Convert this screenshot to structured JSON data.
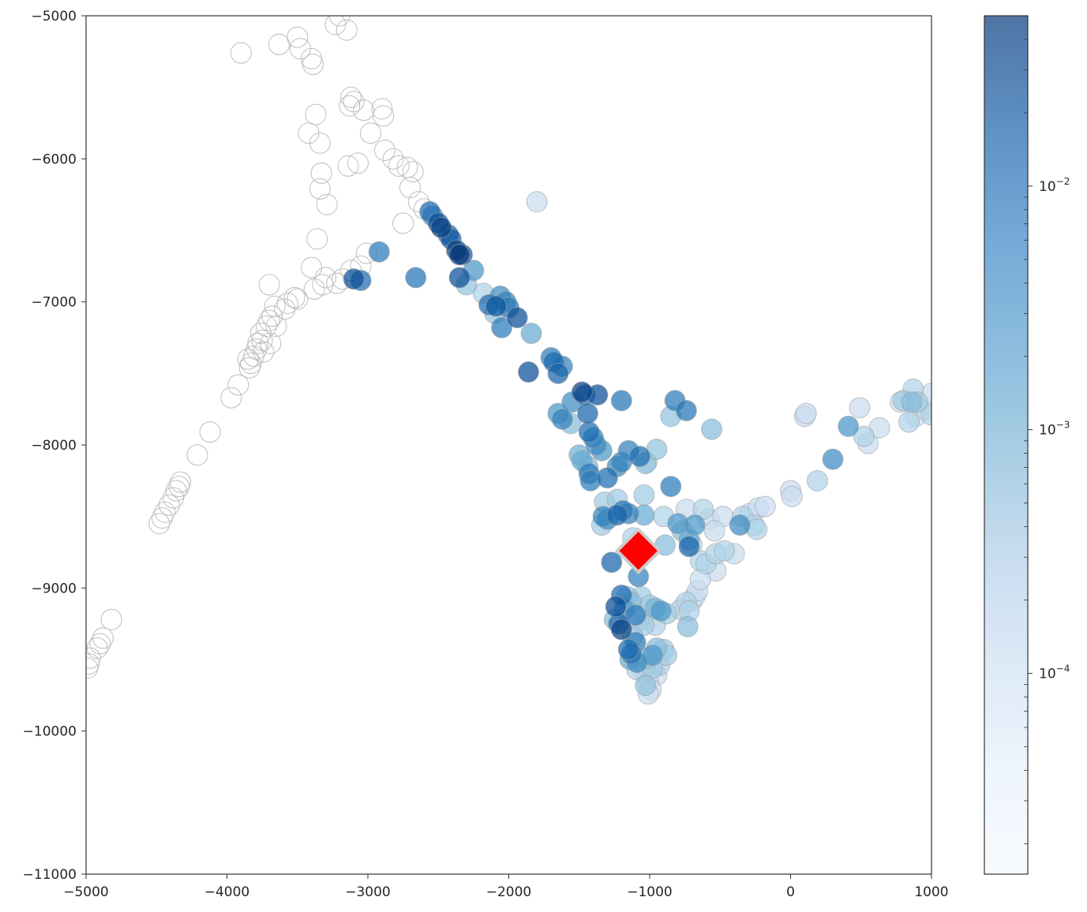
{
  "chart_data": {
    "type": "scatter",
    "title": "",
    "xlabel": "",
    "ylabel": "",
    "xlim": [
      -5000,
      1000
    ],
    "ylim": [
      -11000,
      -5000
    ],
    "xticks": [
      -5000,
      -4000,
      -3000,
      -2000,
      -1000,
      0,
      1000
    ],
    "xtick_labels": [
      "−5000",
      "−4000",
      "−3000",
      "−2000",
      "−1000",
      "0",
      "1000"
    ],
    "yticks": [
      -5000,
      -6000,
      -7000,
      -8000,
      -9000,
      -10000,
      -11000
    ],
    "ytick_labels": [
      "−5000",
      "−6000",
      "−7000",
      "−8000",
      "−9000",
      "−10000",
      "−11000"
    ],
    "grid": false,
    "colormap": "Blues",
    "colorbar": {
      "scale": "log",
      "range": [
        1.5e-05,
        0.05
      ],
      "ticks": [
        0.0001,
        0.001,
        0.01
      ],
      "tick_labels": [
        {
          "base": "10",
          "exp": "−4"
        },
        {
          "base": "10",
          "exp": "−3"
        },
        {
          "base": "10",
          "exp": "−2"
        }
      ]
    },
    "unvalued_points": [
      [
        -3900,
        -5260
      ],
      [
        -3630,
        -5200
      ],
      [
        -3500,
        -5150
      ],
      [
        -3480,
        -5230
      ],
      [
        -3400,
        -5300
      ],
      [
        -3390,
        -5340
      ],
      [
        -3200,
        -5000
      ],
      [
        -3230,
        -5060
      ],
      [
        -3150,
        -5100
      ],
      [
        -3120,
        -5570
      ],
      [
        -3100,
        -5600
      ],
      [
        -3130,
        -5630
      ],
      [
        -3030,
        -5660
      ],
      [
        -2900,
        -5650
      ],
      [
        -2890,
        -5700
      ],
      [
        -2980,
        -5820
      ],
      [
        -3370,
        -5690
      ],
      [
        -3420,
        -5820
      ],
      [
        -3340,
        -5890
      ],
      [
        -2880,
        -5940
      ],
      [
        -2820,
        -6000
      ],
      [
        -2780,
        -6050
      ],
      [
        -2720,
        -6060
      ],
      [
        -2680,
        -6090
      ],
      [
        -2700,
        -6200
      ],
      [
        -2640,
        -6300
      ],
      [
        -2600,
        -6350
      ],
      [
        -2750,
        -6450
      ],
      [
        -3330,
        -6100
      ],
      [
        -3340,
        -6210
      ],
      [
        -3290,
        -6320
      ],
      [
        -3360,
        -6560
      ],
      [
        -3140,
        -6050
      ],
      [
        -3070,
        -6030
      ],
      [
        -3010,
        -6660
      ],
      [
        -3050,
        -6750
      ],
      [
        -3120,
        -6780
      ],
      [
        -3180,
        -6840
      ],
      [
        -3220,
        -6870
      ],
      [
        -3300,
        -6830
      ],
      [
        -3320,
        -6880
      ],
      [
        -3380,
        -6910
      ],
      [
        -3400,
        -6760
      ],
      [
        -3500,
        -6980
      ],
      [
        -3520,
        -6970
      ],
      [
        -3570,
        -7010
      ],
      [
        -3590,
        -7050
      ],
      [
        -3660,
        -7030
      ],
      [
        -3680,
        -7100
      ],
      [
        -3700,
        -6880
      ],
      [
        -3700,
        -7130
      ],
      [
        -3650,
        -7170
      ],
      [
        -3720,
        -7170
      ],
      [
        -3760,
        -7220
      ],
      [
        -3750,
        -7270
      ],
      [
        -3690,
        -7290
      ],
      [
        -3780,
        -7290
      ],
      [
        -3790,
        -7330
      ],
      [
        -3740,
        -7350
      ],
      [
        -3810,
        -7380
      ],
      [
        -3830,
        -7430
      ],
      [
        -3850,
        -7400
      ],
      [
        -3840,
        -7460
      ],
      [
        -3920,
        -7580
      ],
      [
        -3970,
        -7670
      ],
      [
        -4120,
        -7910
      ],
      [
        -4210,
        -8070
      ],
      [
        -4330,
        -8260
      ],
      [
        -4340,
        -8290
      ],
      [
        -4360,
        -8320
      ],
      [
        -4380,
        -8370
      ],
      [
        -4410,
        -8420
      ],
      [
        -4440,
        -8470
      ],
      [
        -4460,
        -8510
      ],
      [
        -4480,
        -8550
      ],
      [
        -4820,
        -9220
      ],
      [
        -4880,
        -9350
      ],
      [
        -4900,
        -9390
      ],
      [
        -4920,
        -9420
      ],
      [
        -4970,
        -9490
      ],
      [
        -4980,
        -9530
      ],
      [
        -4990,
        -9560
      ]
    ],
    "points": [
      {
        "x": -1800,
        "y": -6300,
        "v": 0.0001
      },
      {
        "x": -2560,
        "y": -6370,
        "v": 0.008
      },
      {
        "x": -2540,
        "y": -6400,
        "v": 0.003
      },
      {
        "x": -2500,
        "y": -6450,
        "v": 0.02
      },
      {
        "x": -2480,
        "y": -6480,
        "v": 0.03
      },
      {
        "x": -2430,
        "y": -6530,
        "v": 0.01
      },
      {
        "x": -2410,
        "y": -6560,
        "v": 0.015
      },
      {
        "x": -2370,
        "y": -6640,
        "v": 0.03
      },
      {
        "x": -2350,
        "y": -6670,
        "v": 0.04
      },
      {
        "x": -2330,
        "y": -6670,
        "v": 0.015
      },
      {
        "x": -2350,
        "y": -6830,
        "v": 0.02
      },
      {
        "x": -2250,
        "y": -6780,
        "v": 0.002
      },
      {
        "x": -2920,
        "y": -6650,
        "v": 0.005
      },
      {
        "x": -2660,
        "y": -6830,
        "v": 0.006
      },
      {
        "x": -3100,
        "y": -6840,
        "v": 0.02
      },
      {
        "x": -3050,
        "y": -6850,
        "v": 0.008
      },
      {
        "x": -2300,
        "y": -6880,
        "v": 0.0004
      },
      {
        "x": -2180,
        "y": -6940,
        "v": 0.0002
      },
      {
        "x": -2060,
        "y": -6960,
        "v": 0.003
      },
      {
        "x": -2020,
        "y": -7000,
        "v": 0.004
      },
      {
        "x": -2140,
        "y": -7020,
        "v": 0.008
      },
      {
        "x": -2090,
        "y": -7030,
        "v": 0.015
      },
      {
        "x": -2000,
        "y": -7040,
        "v": 0.005
      },
      {
        "x": -2100,
        "y": -7080,
        "v": 0.0004
      },
      {
        "x": -1940,
        "y": -7110,
        "v": 0.02
      },
      {
        "x": -2050,
        "y": -7180,
        "v": 0.005
      },
      {
        "x": -1840,
        "y": -7220,
        "v": 0.001
      },
      {
        "x": -1700,
        "y": -7390,
        "v": 0.005
      },
      {
        "x": -1680,
        "y": -7420,
        "v": 0.008
      },
      {
        "x": -1620,
        "y": -7450,
        "v": 0.004
      },
      {
        "x": -1650,
        "y": -7500,
        "v": 0.01
      },
      {
        "x": -1860,
        "y": -7490,
        "v": 0.02
      },
      {
        "x": -1480,
        "y": -7630,
        "v": 0.03
      },
      {
        "x": -1460,
        "y": -7650,
        "v": 0.008
      },
      {
        "x": -1370,
        "y": -7650,
        "v": 0.02
      },
      {
        "x": -1550,
        "y": -7700,
        "v": 0.003
      },
      {
        "x": -1200,
        "y": -7690,
        "v": 0.006
      },
      {
        "x": -1650,
        "y": -7780,
        "v": 0.002
      },
      {
        "x": -1620,
        "y": -7820,
        "v": 0.004
      },
      {
        "x": -1560,
        "y": -7850,
        "v": 0.0005
      },
      {
        "x": -1440,
        "y": -7780,
        "v": 0.01
      },
      {
        "x": -1430,
        "y": -7910,
        "v": 0.008
      },
      {
        "x": -1400,
        "y": -7950,
        "v": 0.004
      },
      {
        "x": -1380,
        "y": -8000,
        "v": 0.003
      },
      {
        "x": -1340,
        "y": -8040,
        "v": 0.002
      },
      {
        "x": -1500,
        "y": -8070,
        "v": 0.0008
      },
      {
        "x": -1480,
        "y": -8110,
        "v": 0.001
      },
      {
        "x": -1440,
        "y": -8150,
        "v": 0.0006
      },
      {
        "x": -1430,
        "y": -8200,
        "v": 0.005
      },
      {
        "x": -1420,
        "y": -8250,
        "v": 0.005
      },
      {
        "x": -1300,
        "y": -8230,
        "v": 0.008
      },
      {
        "x": -1230,
        "y": -8150,
        "v": 0.003
      },
      {
        "x": -1200,
        "y": -8120,
        "v": 0.004
      },
      {
        "x": -1150,
        "y": -8040,
        "v": 0.004
      },
      {
        "x": -1070,
        "y": -8080,
        "v": 0.008
      },
      {
        "x": -1030,
        "y": -8130,
        "v": 0.0004
      },
      {
        "x": -950,
        "y": -8030,
        "v": 0.0004
      },
      {
        "x": -820,
        "y": -7690,
        "v": 0.005
      },
      {
        "x": -850,
        "y": -7800,
        "v": 0.0004
      },
      {
        "x": -740,
        "y": -7760,
        "v": 0.006
      },
      {
        "x": -560,
        "y": -7890,
        "v": 0.0005
      },
      {
        "x": -850,
        "y": -8290,
        "v": 0.005
      },
      {
        "x": -1020,
        "y": -8120,
        "v": 0.0002
      },
      {
        "x": -1320,
        "y": -8400,
        "v": 0.0003
      },
      {
        "x": -1230,
        "y": -8380,
        "v": 0.0003
      },
      {
        "x": -1190,
        "y": -8460,
        "v": 0.006
      },
      {
        "x": -1150,
        "y": -8480,
        "v": 0.004
      },
      {
        "x": -1230,
        "y": -8490,
        "v": 0.01
      },
      {
        "x": -1330,
        "y": -8500,
        "v": 0.004
      },
      {
        "x": -1300,
        "y": -8520,
        "v": 0.003
      },
      {
        "x": -1340,
        "y": -8560,
        "v": 0.0003
      },
      {
        "x": -1040,
        "y": -8350,
        "v": 0.0003
      },
      {
        "x": -1040,
        "y": -8490,
        "v": 0.001
      },
      {
        "x": -900,
        "y": -8500,
        "v": 0.0002
      },
      {
        "x": -1120,
        "y": -8650,
        "v": 0.0002
      },
      {
        "x": -1090,
        "y": -8700,
        "v": 0.0005
      },
      {
        "x": -1030,
        "y": -8740,
        "v": 0.0003
      },
      {
        "x": -890,
        "y": -8700,
        "v": 0.0005
      },
      {
        "x": -800,
        "y": -8550,
        "v": 0.002
      },
      {
        "x": -770,
        "y": -8600,
        "v": 0.0005
      },
      {
        "x": -720,
        "y": -8660,
        "v": 0.001
      },
      {
        "x": -680,
        "y": -8560,
        "v": 0.002
      },
      {
        "x": -740,
        "y": -8450,
        "v": 0.0001
      },
      {
        "x": -620,
        "y": -8450,
        "v": 0.0002
      },
      {
        "x": -580,
        "y": -8520,
        "v": 0.0001
      },
      {
        "x": -480,
        "y": -8500,
        "v": 0.0001
      },
      {
        "x": -540,
        "y": -8600,
        "v": 0.0001
      },
      {
        "x": -720,
        "y": -8710,
        "v": 0.01
      },
      {
        "x": -700,
        "y": -8700,
        "v": 0.0002
      },
      {
        "x": -640,
        "y": -8810,
        "v": 0.0002
      },
      {
        "x": -600,
        "y": -8830,
        "v": 0.0002
      },
      {
        "x": -530,
        "y": -8880,
        "v": 0.0001
      },
      {
        "x": -530,
        "y": -8760,
        "v": 0.0002
      },
      {
        "x": -470,
        "y": -8740,
        "v": 0.0002
      },
      {
        "x": -400,
        "y": -8760,
        "v": 0.0001
      },
      {
        "x": -360,
        "y": -8560,
        "v": 0.003
      },
      {
        "x": -340,
        "y": -8500,
        "v": 0.0002
      },
      {
        "x": -290,
        "y": -8480,
        "v": 0.0001
      },
      {
        "x": -260,
        "y": -8560,
        "v": 0.0002
      },
      {
        "x": -240,
        "y": -8590,
        "v": 0.0002
      },
      {
        "x": -230,
        "y": -8440,
        "v": 0.0001
      },
      {
        "x": -180,
        "y": -8430,
        "v": 0.0001
      },
      {
        "x": 0,
        "y": -8320,
        "v": 0.0001
      },
      {
        "x": 10,
        "y": -8360,
        "v": 0.0001
      },
      {
        "x": 190,
        "y": -8250,
        "v": 0.0002
      },
      {
        "x": 300,
        "y": -8100,
        "v": 0.003
      },
      {
        "x": 100,
        "y": -7800,
        "v": 0.0001
      },
      {
        "x": 110,
        "y": -7780,
        "v": 0.0001
      },
      {
        "x": 410,
        "y": -7870,
        "v": 0.002
      },
      {
        "x": 490,
        "y": -7740,
        "v": 0.0001
      },
      {
        "x": 520,
        "y": -7940,
        "v": 0.0002
      },
      {
        "x": 550,
        "y": -7990,
        "v": 0.0001
      },
      {
        "x": 630,
        "y": -7880,
        "v": 0.0001
      },
      {
        "x": 780,
        "y": -7700,
        "v": 0.0001
      },
      {
        "x": 800,
        "y": -7690,
        "v": 0.0003
      },
      {
        "x": 840,
        "y": -7840,
        "v": 0.0002
      },
      {
        "x": 860,
        "y": -7700,
        "v": 0.0005
      },
      {
        "x": 870,
        "y": -7610,
        "v": 0.0002
      },
      {
        "x": 900,
        "y": -7700,
        "v": 0.0003
      },
      {
        "x": 890,
        "y": -7800,
        "v": 0.0001
      },
      {
        "x": 960,
        "y": -7750,
        "v": 0.0001
      },
      {
        "x": 1000,
        "y": -7790,
        "v": 0.0002
      },
      {
        "x": 1000,
        "y": -7640,
        "v": 0.0001
      },
      {
        "x": -1270,
        "y": -8820,
        "v": 0.01
      },
      {
        "x": -1080,
        "y": -8920,
        "v": 0.004
      },
      {
        "x": -1200,
        "y": -9050,
        "v": 0.008
      },
      {
        "x": -1160,
        "y": -9060,
        "v": 0.0004
      },
      {
        "x": -1060,
        "y": -9060,
        "v": 0.0003
      },
      {
        "x": -1130,
        "y": -9100,
        "v": 0.0005
      },
      {
        "x": -1240,
        "y": -9130,
        "v": 0.02
      },
      {
        "x": -1180,
        "y": -9150,
        "v": 0.002
      },
      {
        "x": -1000,
        "y": -9120,
        "v": 0.0003
      },
      {
        "x": -960,
        "y": -9140,
        "v": 0.0008
      },
      {
        "x": -920,
        "y": -9160,
        "v": 0.002
      },
      {
        "x": -880,
        "y": -9180,
        "v": 0.0003
      },
      {
        "x": -780,
        "y": -9150,
        "v": 0.0002
      },
      {
        "x": -740,
        "y": -9100,
        "v": 0.0002
      },
      {
        "x": -700,
        "y": -9090,
        "v": 0.0001
      },
      {
        "x": -680,
        "y": -9060,
        "v": 0.0001
      },
      {
        "x": -660,
        "y": -9020,
        "v": 0.0001
      },
      {
        "x": -640,
        "y": -8940,
        "v": 0.0001
      },
      {
        "x": -720,
        "y": -9160,
        "v": 0.0002
      },
      {
        "x": -730,
        "y": -9270,
        "v": 0.0005
      },
      {
        "x": -1250,
        "y": -9220,
        "v": 0.0005
      },
      {
        "x": -1220,
        "y": -9250,
        "v": 0.008
      },
      {
        "x": -1200,
        "y": -9290,
        "v": 0.03
      },
      {
        "x": -1100,
        "y": -9190,
        "v": 0.005
      },
      {
        "x": -1080,
        "y": -9230,
        "v": 0.0003
      },
      {
        "x": -1040,
        "y": -9260,
        "v": 0.0003
      },
      {
        "x": -960,
        "y": -9260,
        "v": 0.0002
      },
      {
        "x": -1120,
        "y": -9340,
        "v": 0.0003
      },
      {
        "x": -1100,
        "y": -9380,
        "v": 0.005
      },
      {
        "x": -1150,
        "y": -9430,
        "v": 0.008
      },
      {
        "x": -1130,
        "y": -9460,
        "v": 0.006
      },
      {
        "x": -1140,
        "y": -9500,
        "v": 0.001
      },
      {
        "x": -1090,
        "y": -9520,
        "v": 0.003
      },
      {
        "x": -1020,
        "y": -9490,
        "v": 0.0004
      },
      {
        "x": -980,
        "y": -9470,
        "v": 0.002
      },
      {
        "x": -950,
        "y": -9420,
        "v": 0.0005
      },
      {
        "x": -900,
        "y": -9430,
        "v": 0.0003
      },
      {
        "x": -880,
        "y": -9470,
        "v": 0.0003
      },
      {
        "x": -930,
        "y": -9540,
        "v": 0.0002
      },
      {
        "x": -1030,
        "y": -9540,
        "v": 0.0002
      },
      {
        "x": -980,
        "y": -9560,
        "v": 0.0003
      },
      {
        "x": -1090,
        "y": -9570,
        "v": 0.0002
      },
      {
        "x": -1030,
        "y": -9600,
        "v": 0.0001
      },
      {
        "x": -950,
        "y": -9610,
        "v": 0.0001
      },
      {
        "x": -1010,
        "y": -9660,
        "v": 0.0001
      },
      {
        "x": -1030,
        "y": -9680,
        "v": 0.0004
      },
      {
        "x": -990,
        "y": -9710,
        "v": 0.0001
      },
      {
        "x": -1010,
        "y": -9740,
        "v": 0.0001
      }
    ],
    "marker": {
      "x": -1080,
      "y": -8740,
      "shape": "diamond",
      "color": "#ff0000",
      "edge": "#cccccc"
    },
    "colors": {
      "unvalued_edge": "#bdbdbd",
      "point_edge": "#9e9e9e",
      "axis": "#333333"
    }
  }
}
